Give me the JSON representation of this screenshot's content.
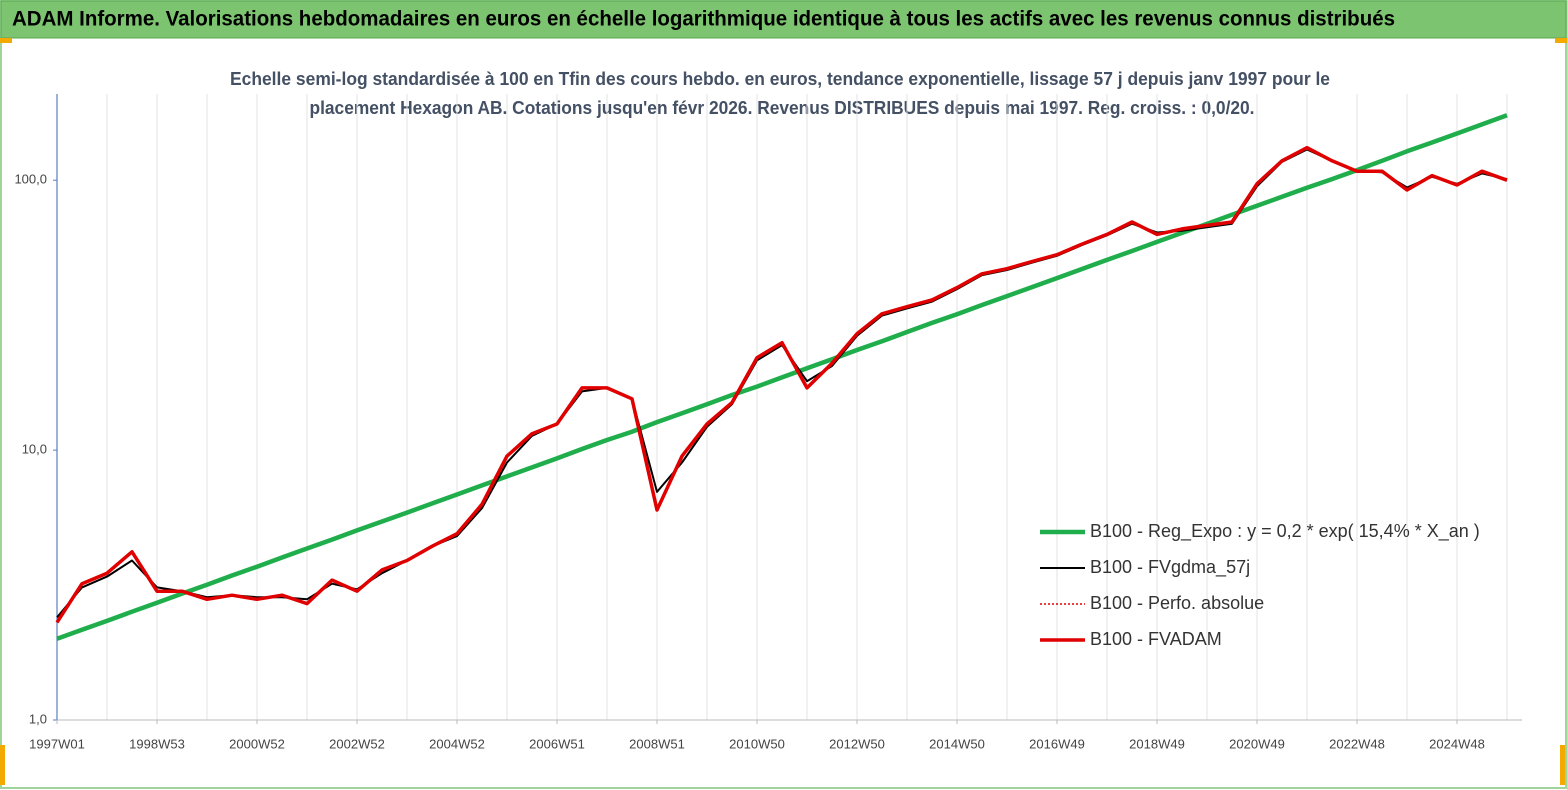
{
  "chart_data": {
    "type": "line",
    "title": "ADAM Informe. Valorisations hebdomadaires en euros en échelle logarithmique identique à tous les actifs avec les revenus connus distribués",
    "subtitle": [
      "Echelle semi-log standardisée à 100 en Tfin des cours hebdo. en euros, tendance exponentielle, lissage 57 j depuis janv 1997 pour le",
      "placement Hexagon AB. Cotations jusqu'en févr 2026. Revenus DISTRIBUES depuis mai 1997. Reg. croiss. : 0,0/20."
    ],
    "categories": [
      "1997W01",
      null,
      null,
      null,
      "1998W53",
      null,
      null,
      null,
      "2000W52",
      null,
      null,
      null,
      "2002W52",
      null,
      null,
      null,
      "2004W52",
      null,
      null,
      null,
      "2006W51",
      null,
      null,
      null,
      "2008W51",
      null,
      null,
      null,
      "2010W50",
      null,
      null,
      null,
      "2012W50",
      null,
      null,
      null,
      "2014W50",
      null,
      null,
      null,
      "2016W49",
      null,
      null,
      null,
      "2018W49",
      null,
      null,
      null,
      "2020W49",
      null,
      null,
      null,
      "2022W48",
      null,
      null,
      null,
      "2024W48",
      null,
      null
    ],
    "series": [
      {
        "name": "B100 - Reg_Expo : y = 0,2 * exp( 15,4% *  X_an )",
        "color": "#1fae4b",
        "width": 4.5,
        "values": [
          2.0,
          2.16,
          2.33,
          2.52,
          2.72,
          2.94,
          3.17,
          3.43,
          3.7,
          4.0,
          4.32,
          4.66,
          5.04,
          5.44,
          5.87,
          6.34,
          6.85,
          7.4,
          7.99,
          8.63,
          9.32,
          10.1,
          10.9,
          11.7,
          12.7,
          13.7,
          14.8,
          16.0,
          17.2,
          18.6,
          20.1,
          21.7,
          23.5,
          25.3,
          27.4,
          29.6,
          31.9,
          34.5,
          37.2,
          40.2,
          43.4,
          46.9,
          50.7,
          54.7,
          59.1,
          63.8,
          68.9,
          74.5,
          80.4,
          86.8,
          93.8,
          101,
          109,
          118,
          128,
          138,
          149,
          161,
          174
        ]
      },
      {
        "name": "B100 - FVgdma_57j",
        "color": "#000000",
        "width": 2,
        "values": [
          2.4,
          3.1,
          3.4,
          3.9,
          3.1,
          3.0,
          2.85,
          2.9,
          2.85,
          2.85,
          2.8,
          3.2,
          3.05,
          3.5,
          3.9,
          4.4,
          4.8,
          6.1,
          9.0,
          11.3,
          12.5,
          16.5,
          17.0,
          15.5,
          7.0,
          9.0,
          12.2,
          14.8,
          21.5,
          24.5,
          18.0,
          20.5,
          26.5,
          31.5,
          33.5,
          35.5,
          39.5,
          44.5,
          46.5,
          49.5,
          52.5,
          57.5,
          62.5,
          69,
          64,
          65,
          67,
          69,
          95,
          117,
          130,
          118,
          108,
          107,
          94,
          103,
          97,
          106,
          101
        ]
      },
      {
        "name": "B100 - Perfo. absolue",
        "color": "#e00000",
        "width": 1.5,
        "style": "dotted",
        "values": [
          2.3,
          3.2,
          3.5,
          4.2,
          3.0,
          3.0,
          2.8,
          2.9,
          2.8,
          2.9,
          2.7,
          3.3,
          3.0,
          3.6,
          3.9,
          4.4,
          4.9,
          6.3,
          9.5,
          11.5,
          12.5,
          17,
          17,
          15.5,
          6,
          9.5,
          12.5,
          15,
          22,
          25,
          17,
          21,
          27,
          32,
          34,
          36,
          40,
          45,
          47,
          50,
          53,
          58,
          63,
          70,
          63,
          66,
          68,
          70,
          97,
          118,
          132,
          118,
          108,
          108,
          92,
          104,
          96,
          108,
          100
        ]
      },
      {
        "name": "B100 - FVADAM",
        "color": "#e00000",
        "width": 3.5,
        "values": [
          2.3,
          3.2,
          3.5,
          4.2,
          3.0,
          3.0,
          2.8,
          2.9,
          2.8,
          2.9,
          2.7,
          3.3,
          3.0,
          3.6,
          3.9,
          4.4,
          4.9,
          6.3,
          9.5,
          11.5,
          12.5,
          17,
          17,
          15.5,
          6,
          9.5,
          12.5,
          15,
          22,
          25,
          17,
          21,
          27,
          32,
          34,
          36,
          40,
          45,
          47,
          50,
          53,
          58,
          63,
          70,
          63,
          66,
          68,
          70,
          97,
          118,
          132,
          118,
          108,
          108,
          92,
          104,
          96,
          108,
          100
        ]
      }
    ],
    "log_scale": true,
    "ylim": [
      1,
      200
    ],
    "yticks": [
      {
        "value": 1,
        "label": "1,0"
      },
      {
        "value": 10,
        "label": "10,0"
      },
      {
        "value": 100,
        "label": "100,0"
      }
    ],
    "grid": true,
    "legend": "lower-right"
  }
}
